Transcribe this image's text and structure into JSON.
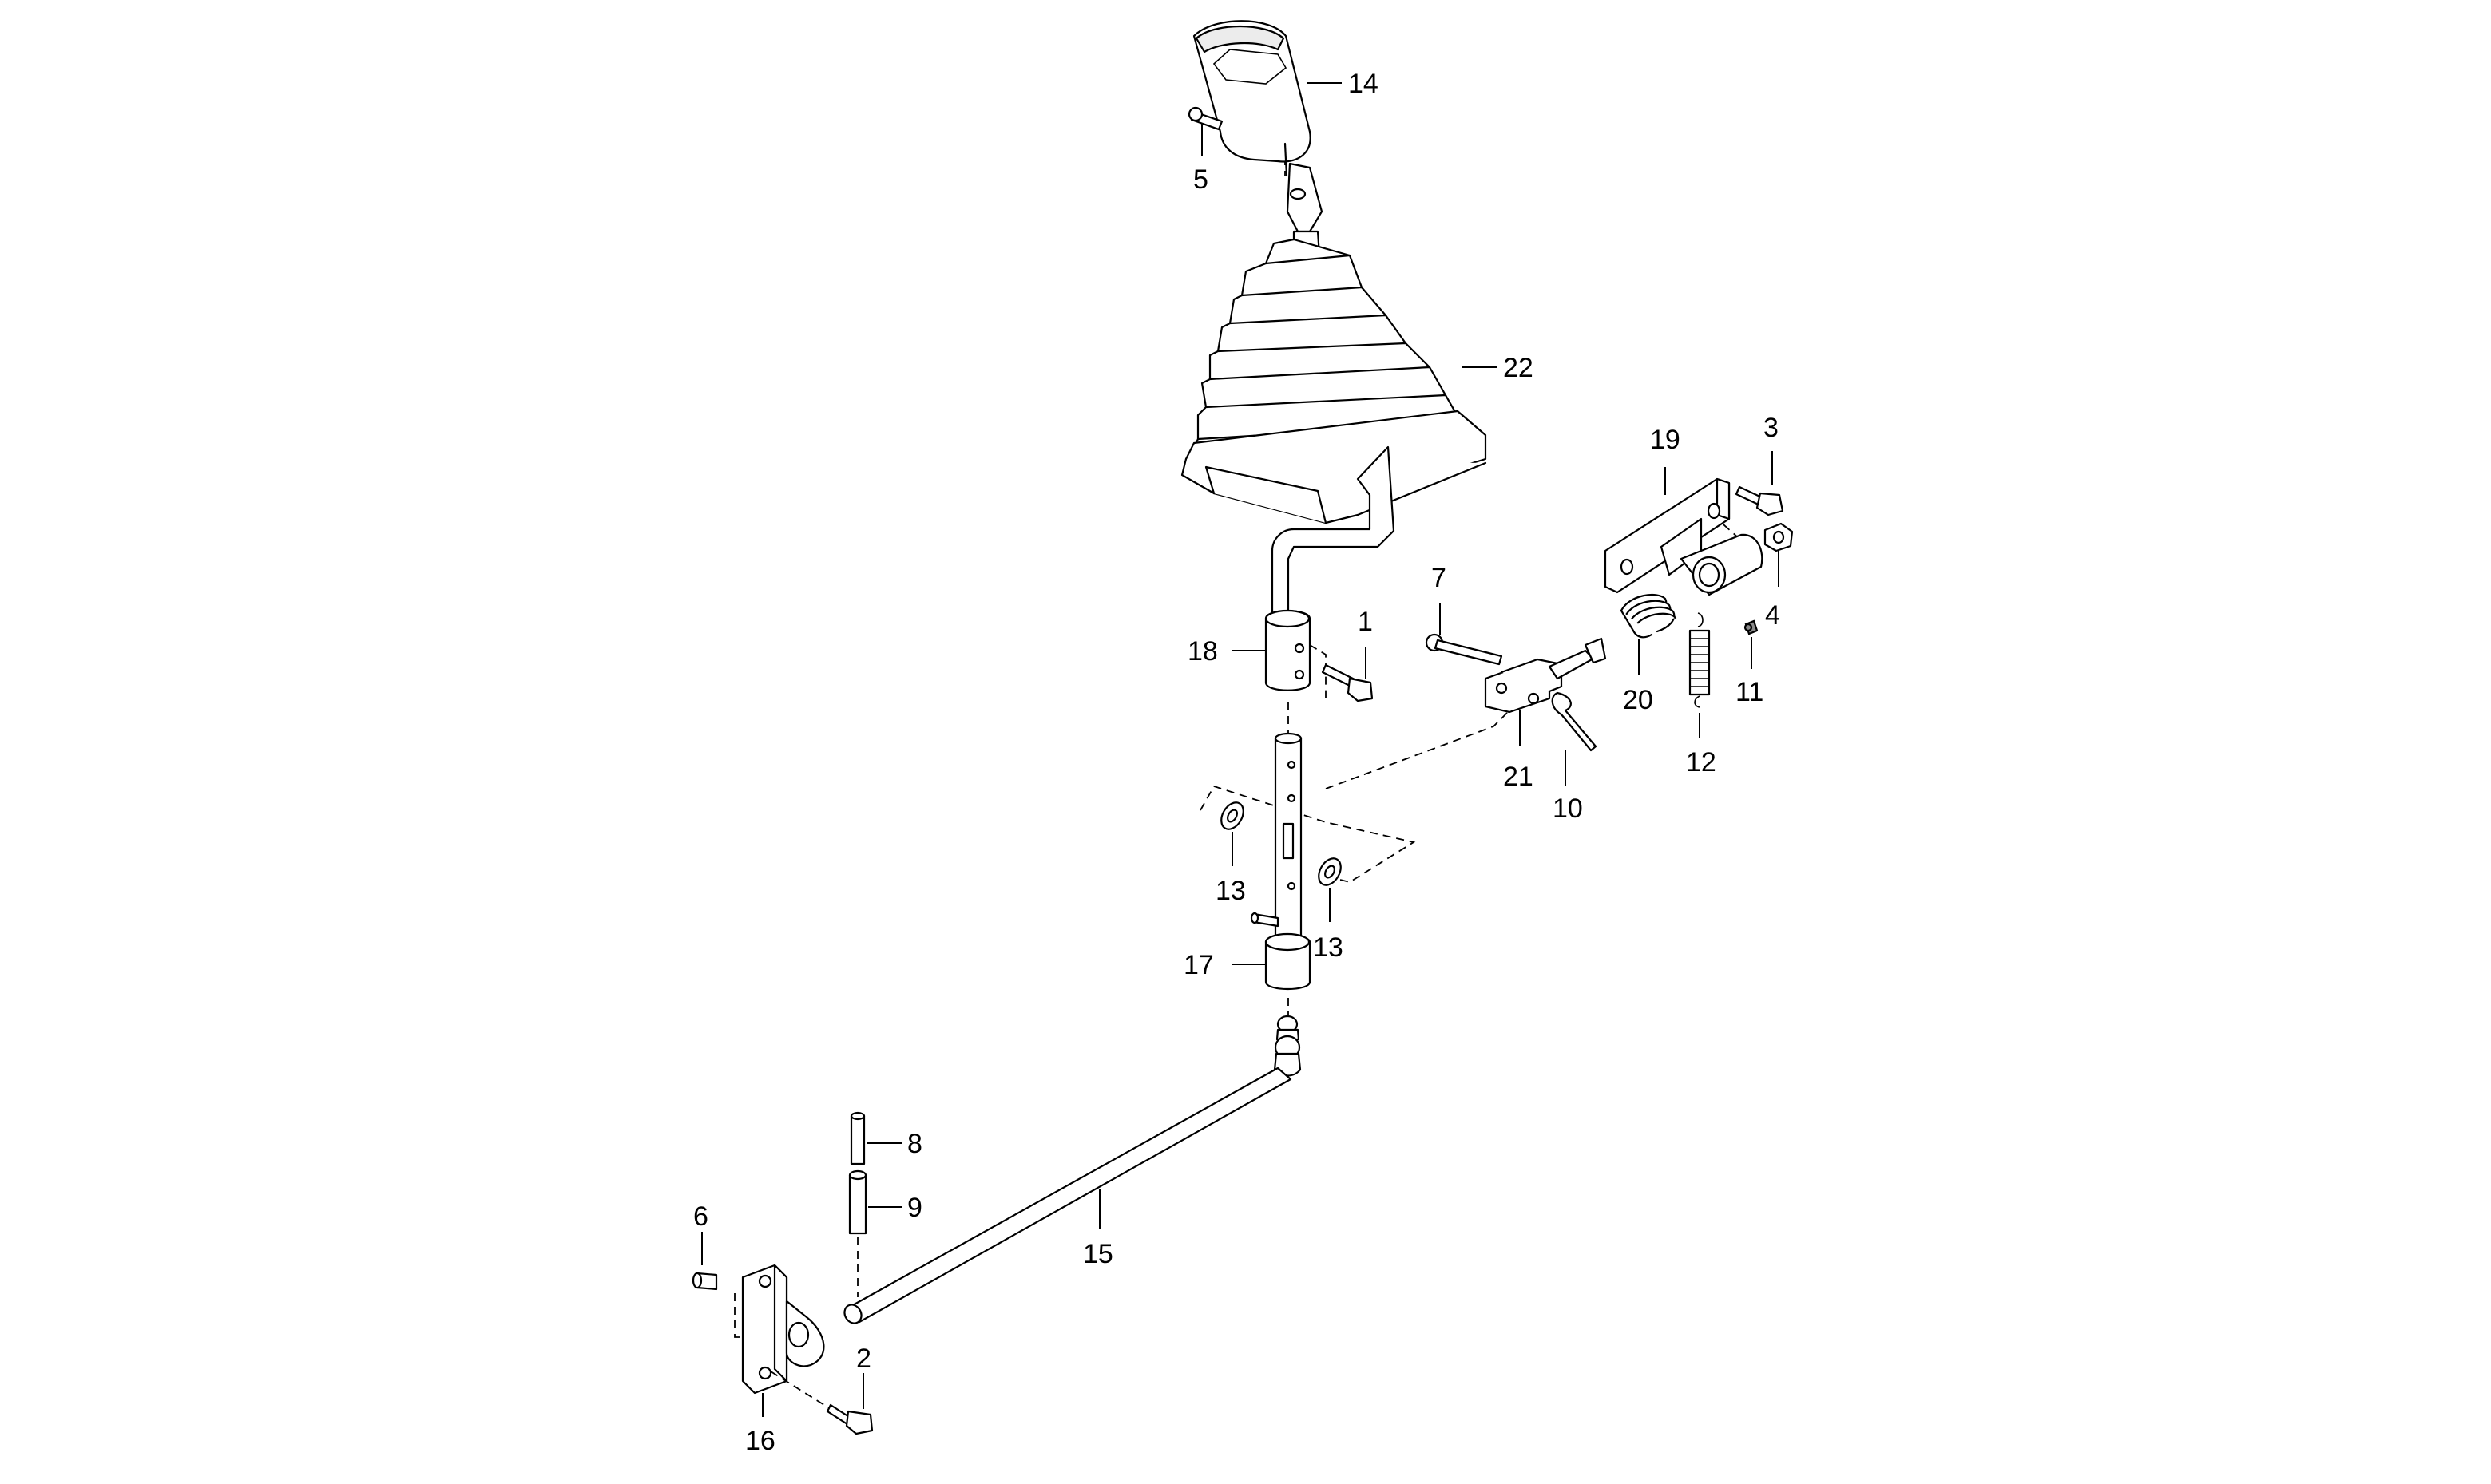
{
  "callouts": {
    "c1": "1",
    "c2": "2",
    "c3": "3",
    "c4": "4",
    "c5": "5",
    "c6": "6",
    "c7": "7",
    "c8": "8",
    "c9": "9",
    "c10": "10",
    "c11": "11",
    "c12": "12",
    "c13a": "13",
    "c13b": "13",
    "c14": "14",
    "c15": "15",
    "c16": "16",
    "c17": "17",
    "c18": "18",
    "c19": "19",
    "c20": "20",
    "c21": "21",
    "c22": "22"
  }
}
